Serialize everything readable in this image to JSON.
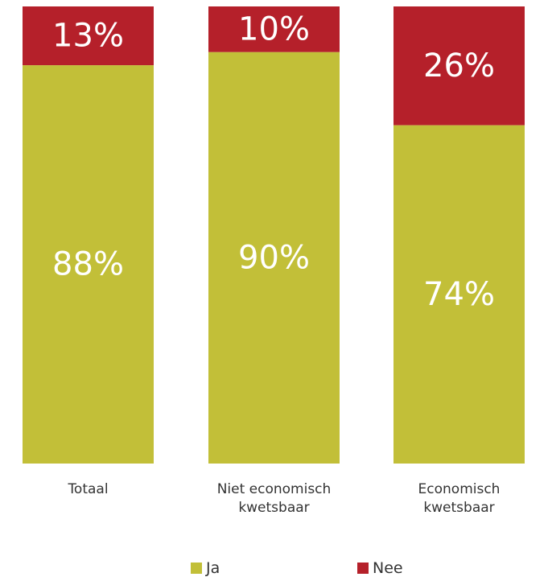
{
  "chart_data": {
    "type": "bar",
    "stacked": true,
    "percent": true,
    "categories": [
      [
        "Totaal"
      ],
      [
        "Niet economisch",
        "kwetsbaar"
      ],
      [
        "Economisch",
        "kwetsbaar"
      ]
    ],
    "series": [
      {
        "name": "Ja",
        "color": "#c2bf38",
        "values": [
          88,
          90,
          74
        ],
        "labels": [
          "88%",
          "90%",
          "74%"
        ]
      },
      {
        "name": "Nee",
        "color": "#b5202a",
        "values": [
          13,
          10,
          26
        ],
        "labels": [
          "13%",
          "10%",
          "26%"
        ]
      }
    ],
    "legend_position": "bottom",
    "grid": false,
    "ylim": [
      0,
      100
    ]
  }
}
